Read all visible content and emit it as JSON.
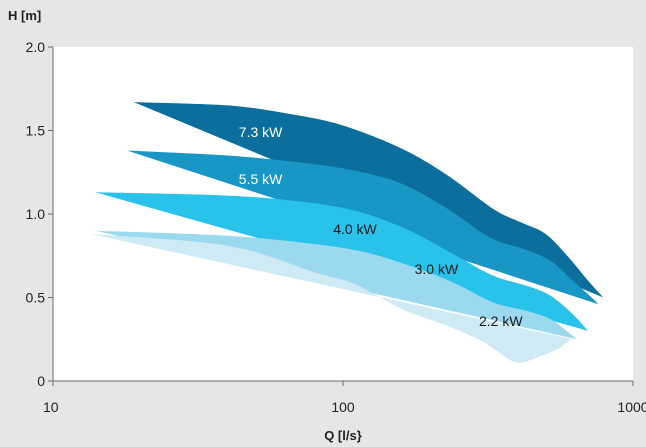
{
  "chart_data": {
    "type": "area",
    "ylabel": "H [m]",
    "xlabel": "Q [l/s}",
    "xscale": "log",
    "xlim": [
      10,
      1000
    ],
    "ylim": [
      0,
      2.0
    ],
    "xticks": [
      {
        "value": 10,
        "label": "10"
      },
      {
        "value": 100,
        "label": "100"
      },
      {
        "value": 1000,
        "label": "1000"
      }
    ],
    "yticks": [
      {
        "value": 0,
        "label": "0"
      },
      {
        "value": 0.5,
        "label": "0.5"
      },
      {
        "value": 1.0,
        "label": "1.0"
      },
      {
        "value": 1.5,
        "label": "1.5"
      },
      {
        "value": 2.0,
        "label": "2.0"
      }
    ],
    "grid": false,
    "series": [
      {
        "name": "7.3 kW",
        "color": "#0b6e9c",
        "label_color": "#ffffff",
        "label_at": [
          52,
          1.46
        ],
        "boundary": [
          [
            19,
            1.67
          ],
          [
            40,
            1.65
          ],
          [
            65,
            1.6
          ],
          [
            100,
            1.53
          ],
          [
            160,
            1.39
          ],
          [
            230,
            1.23
          ],
          [
            330,
            1.03
          ],
          [
            410,
            0.95
          ],
          [
            500,
            0.88
          ],
          [
            600,
            0.74
          ],
          [
            700,
            0.6
          ],
          [
            790,
            0.5
          ]
        ]
      },
      {
        "name": "5.5 kW",
        "color": "#1897c5",
        "label_color": "#ffffff",
        "label_at": [
          52,
          1.18
        ],
        "boundary": [
          [
            18,
            1.38
          ],
          [
            40,
            1.35
          ],
          [
            70,
            1.31
          ],
          [
            110,
            1.26
          ],
          [
            160,
            1.18
          ],
          [
            230,
            1.03
          ],
          [
            320,
            0.86
          ],
          [
            420,
            0.79
          ],
          [
            520,
            0.72
          ],
          [
            620,
            0.6
          ],
          [
            720,
            0.5
          ],
          [
            760,
            0.46
          ]
        ]
      },
      {
        "name": "4.0 kW",
        "color": "#29c2ea",
        "label_color": "#1a1a1a",
        "label_at": [
          110,
          0.88
        ],
        "boundary": [
          [
            14,
            1.13
          ],
          [
            40,
            1.11
          ],
          [
            75,
            1.07
          ],
          [
            115,
            1.01
          ],
          [
            170,
            0.9
          ],
          [
            240,
            0.76
          ],
          [
            330,
            0.63
          ],
          [
            430,
            0.57
          ],
          [
            520,
            0.51
          ],
          [
            620,
            0.4
          ],
          [
            700,
            0.3
          ]
        ]
      },
      {
        "name": "3.0 kW",
        "color": "#9ad9ee",
        "label_color": "#1a1a1a",
        "label_at": [
          210,
          0.64
        ],
        "boundary": [
          [
            14,
            0.9
          ],
          [
            40,
            0.87
          ],
          [
            80,
            0.82
          ],
          [
            120,
            0.77
          ],
          [
            170,
            0.69
          ],
          [
            240,
            0.59
          ],
          [
            330,
            0.47
          ],
          [
            430,
            0.42
          ],
          [
            520,
            0.37
          ],
          [
            600,
            0.29
          ],
          [
            640,
            0.25
          ]
        ]
      },
      {
        "name": "2.2 kW",
        "color": "#cdeaf5",
        "label_color": "#1a1a1a",
        "label_at": [
          350,
          0.33
        ],
        "boundary": [
          [
            13.5,
            0.88
          ],
          [
            40,
            0.81
          ],
          [
            80,
            0.65
          ],
          [
            110,
            0.58
          ],
          [
            160,
            0.43
          ],
          [
            230,
            0.33
          ],
          [
            300,
            0.24
          ],
          [
            340,
            0.18
          ],
          [
            400,
            0.11
          ],
          [
            500,
            0.16
          ],
          [
            560,
            0.2
          ],
          [
            600,
            0.24
          ],
          [
            620,
            0.25
          ]
        ]
      }
    ]
  }
}
